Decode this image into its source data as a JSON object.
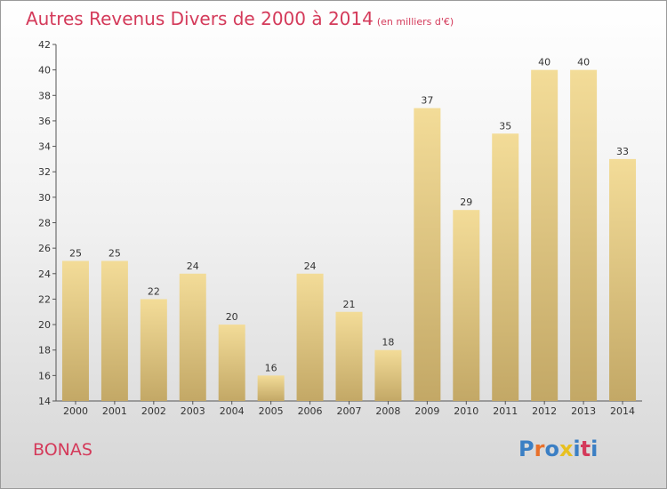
{
  "title": "Autres Revenus Divers de 2000 à 2014",
  "subtitle": "(en milliers d'€)",
  "commune": "BONAS",
  "logo": {
    "text": "Proxiti",
    "colors": [
      "#3b7fc4",
      "#e8702a",
      "#3b7fc4",
      "#e8c020",
      "#3b7fc4",
      "#d43a5a",
      "#3b7fc4"
    ]
  },
  "colors": {
    "title": "#d43a5a",
    "bar_light": "#f3dc98",
    "bar_dark": "#c3a866"
  },
  "chart_data": {
    "type": "bar",
    "categories": [
      "2000",
      "2001",
      "2002",
      "2003",
      "2004",
      "2005",
      "2006",
      "2007",
      "2008",
      "2009",
      "2010",
      "2011",
      "2012",
      "2013",
      "2014"
    ],
    "values": [
      25,
      25,
      22,
      24,
      20,
      16,
      24,
      21,
      18,
      37,
      29,
      35,
      40,
      40,
      33
    ],
    "ylim": [
      14,
      42
    ],
    "yticks": [
      14,
      16,
      18,
      20,
      22,
      24,
      26,
      28,
      30,
      32,
      34,
      36,
      38,
      40,
      42
    ],
    "grid": false,
    "xlabel": "",
    "ylabel": ""
  }
}
